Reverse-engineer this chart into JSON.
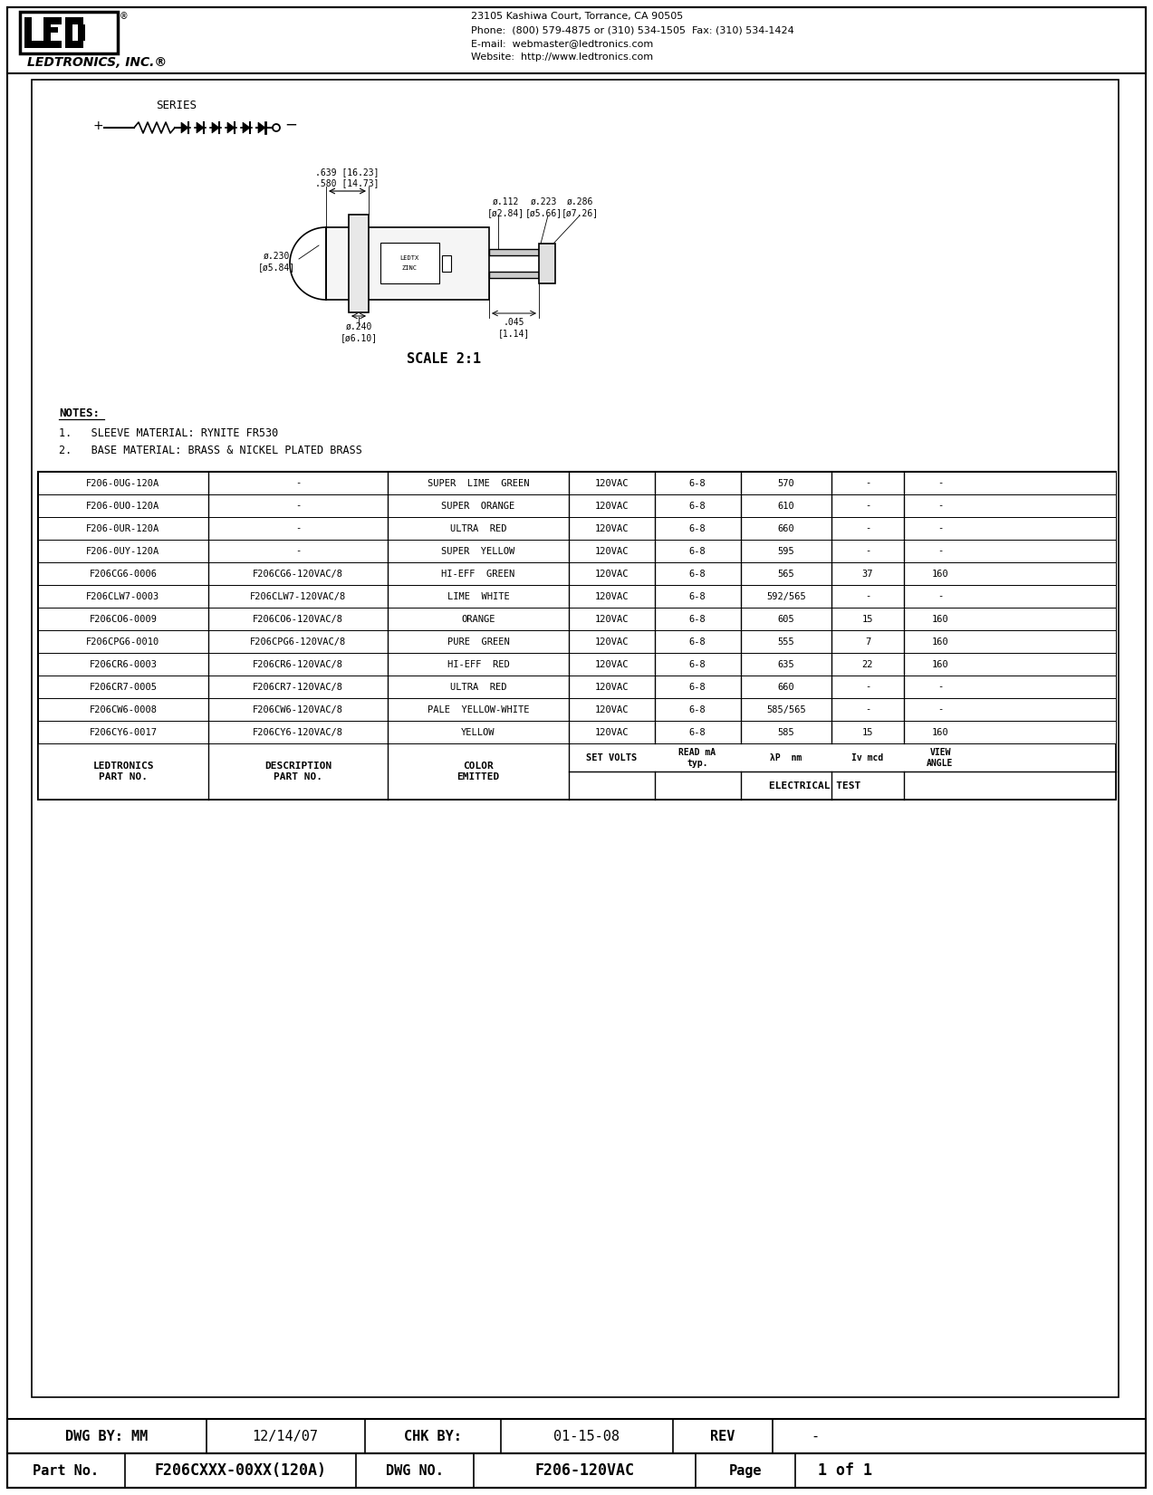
{
  "company_name": "LEDTRONICS, INC.®",
  "address_line1": "23105 Kashiwa Court, Torrance, CA 90505",
  "address_line2": "Phone:  (800) 579-4875 or (310) 534-1505  Fax: (310) 534-1424",
  "address_line3": "E-mail:  webmaster@ledtronics.com",
  "address_line4": "Website:  http://www.ledtronics.com",
  "series_label": "SERIES",
  "scale_label": "SCALE 2:1",
  "notes_title": "NOTES:",
  "notes": [
    "1.   SLEEVE MATERIAL: RYNITE FR530",
    "2.   BASE MATERIAL: BRASS & NICKEL PLATED BRASS"
  ],
  "dim_labels": [
    [
      ".639 [16.23]",
      ".580 [14.73]"
    ],
    [
      "ø.230",
      "[ø5.84]"
    ],
    [
      "ø.112",
      "[ø2.84]"
    ],
    [
      "ø.223",
      "[ø5.66]"
    ],
    [
      "ø.286",
      "[ø7.26]"
    ],
    [
      "ø.240",
      "[ø6.10]"
    ],
    [
      ".045",
      "[1.14]"
    ]
  ],
  "table_headers": [
    "LEDTRONICS\nPART NO.",
    "DESCRIPTION\nPART NO.",
    "COLOR\nEMITTED",
    "SET VOLTS",
    "READ mA\ntyp.",
    "λP  nm",
    "Iv mcd",
    "VIEW\nANGLE"
  ],
  "electrical_test_label": "ELECTRICAL TEST",
  "table_data": [
    [
      "F206-0UG-120A",
      "-",
      "SUPER  LIME  GREEN",
      "120VAC",
      "6-8",
      "570",
      "-",
      "-"
    ],
    [
      "F206-0UO-120A",
      "-",
      "SUPER  ORANGE",
      "120VAC",
      "6-8",
      "610",
      "-",
      "-"
    ],
    [
      "F206-0UR-120A",
      "-",
      "ULTRA  RED",
      "120VAC",
      "6-8",
      "660",
      "-",
      "-"
    ],
    [
      "F206-0UY-120A",
      "-",
      "SUPER  YELLOW",
      "120VAC",
      "6-8",
      "595",
      "-",
      "-"
    ],
    [
      "F206CG6-0006",
      "F206CG6-120VAC/8",
      "HI-EFF  GREEN",
      "120VAC",
      "6-8",
      "565",
      "37",
      "160"
    ],
    [
      "F206CLW7-0003",
      "F206CLW7-120VAC/8",
      "LIME  WHITE",
      "120VAC",
      "6-8",
      "592/565",
      "-",
      "-"
    ],
    [
      "F206CO6-0009",
      "F206CO6-120VAC/8",
      "ORANGE",
      "120VAC",
      "6-8",
      "605",
      "15",
      "160"
    ],
    [
      "F206CPG6-0010",
      "F206CPG6-120VAC/8",
      "PURE  GREEN",
      "120VAC",
      "6-8",
      "555",
      "7",
      "160"
    ],
    [
      "F206CR6-0003",
      "F206CR6-120VAC/8",
      "HI-EFF  RED",
      "120VAC",
      "6-8",
      "635",
      "22",
      "160"
    ],
    [
      "F206CR7-0005",
      "F206CR7-120VAC/8",
      "ULTRA  RED",
      "120VAC",
      "6-8",
      "660",
      "-",
      "-"
    ],
    [
      "F206CW6-0008",
      "F206CW6-120VAC/8",
      "PALE  YELLOW-WHITE",
      "120VAC",
      "6-8",
      "585/565",
      "-",
      "-"
    ],
    [
      "F206CY6-0017",
      "F206CY6-120VAC/8",
      "YELLOW",
      "120VAC",
      "6-8",
      "585",
      "15",
      "160"
    ]
  ],
  "footer_row1": [
    "DWG BY: MM",
    "12/14/07",
    "CHK BY:",
    "01-15-08",
    "REV",
    "-"
  ],
  "footer_row2": [
    "Part No.",
    "F206CXXX-00XX(120A)",
    "DWG NO.",
    "F206-120VAC",
    "Page",
    "1 of 1"
  ],
  "bg_color": "#ffffff",
  "border_color": "#000000",
  "text_color": "#000000"
}
